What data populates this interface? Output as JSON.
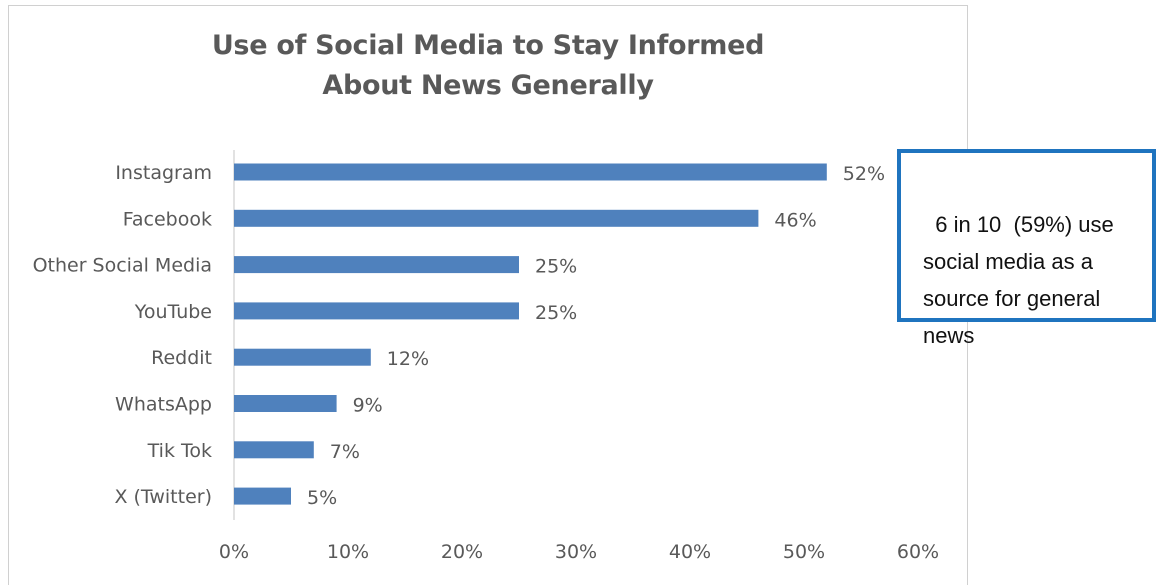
{
  "chart_data": {
    "type": "bar",
    "orientation": "horizontal",
    "title": "Use of Social Media to Stay Informed About News Generally",
    "title_lines": [
      "Use of Social Media to Stay Informed",
      "About News Generally"
    ],
    "categories": [
      "Instagram",
      "Facebook",
      "Other Social Media",
      "YouTube",
      "Reddit",
      "WhatsApp",
      "Tik Tok",
      "X (Twitter)"
    ],
    "values": [
      52,
      46,
      25,
      25,
      12,
      9,
      7,
      5
    ],
    "value_labels": [
      "52%",
      "46%",
      "25%",
      "25%",
      "12%",
      "9%",
      "7%",
      "5%"
    ],
    "xlim": [
      0,
      60
    ],
    "x_ticks": [
      0,
      10,
      20,
      30,
      40,
      50,
      60
    ],
    "x_tick_labels": [
      "0%",
      "10%",
      "20%",
      "30%",
      "40%",
      "50%",
      "60%"
    ],
    "xlabel": "",
    "ylabel": "",
    "grid": false,
    "legend": "none",
    "bar_color": "#4f81bd",
    "text_color": "#595959"
  },
  "callout": {
    "text": "6 in 10  (59%) use social media as a source for general news",
    "border_color": "#1f74bf"
  }
}
